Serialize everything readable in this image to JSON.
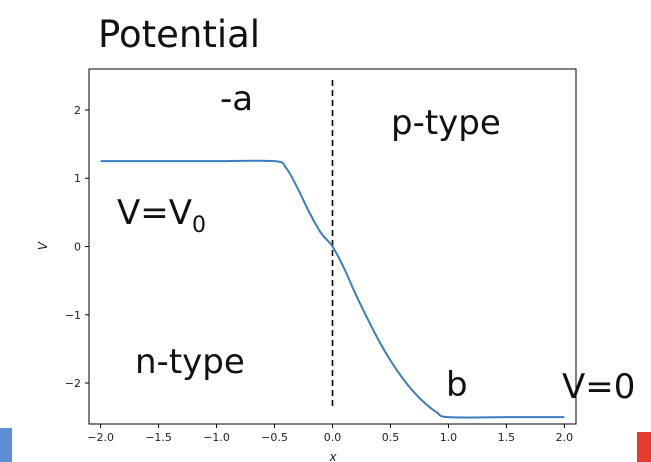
{
  "chart_data": {
    "type": "line",
    "title": "Potential",
    "xlabel": "x",
    "ylabel": "V",
    "xlim": [
      -2.1,
      2.1
    ],
    "ylim": [
      -2.6,
      2.6
    ],
    "x_ticks": [
      -2.0,
      -1.5,
      -1.0,
      -0.5,
      0.0,
      0.5,
      1.0,
      1.5,
      2.0
    ],
    "x_tick_labels": [
      "−2.0",
      "−1.5",
      "−1.0",
      "−0.5",
      "0.0",
      "0.5",
      "1.0",
      "1.5",
      "2.0"
    ],
    "y_ticks": [
      2,
      1,
      0,
      -1,
      -2
    ],
    "y_tick_labels": [
      "2",
      "1",
      "0",
      "−1",
      "−2"
    ],
    "grid": false,
    "series": [
      {
        "color": "#3b7dbf",
        "x": [
          -2.0,
          -1.5,
          -1.0,
          -0.5,
          -0.4,
          -0.3,
          -0.2,
          -0.1,
          0.0,
          0.1,
          0.2,
          0.3,
          0.4,
          0.5,
          0.6,
          0.7,
          0.8,
          0.9,
          1.0,
          1.5,
          2.0
        ],
        "y": [
          1.25,
          1.25,
          1.25,
          1.25,
          1.15,
          0.85,
          0.5,
          0.2,
          0.0,
          -0.32,
          -0.7,
          -1.05,
          -1.38,
          -1.67,
          -1.92,
          -2.13,
          -2.3,
          -2.43,
          -2.5,
          -2.5,
          -2.5
        ]
      }
    ],
    "vline": {
      "x": 0.0,
      "style": "dashed",
      "color": "#000000"
    },
    "annotations": {
      "minus_a": "-a",
      "p_type": "p-type",
      "v_eq": "V=V",
      "v_sub": "0",
      "n_type": "n-type",
      "b": "b",
      "v_zero": "V=0"
    }
  }
}
